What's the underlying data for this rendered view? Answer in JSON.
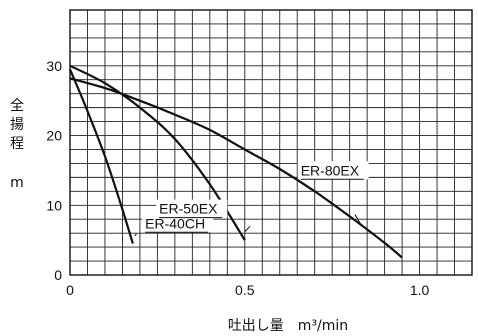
{
  "chart_data": {
    "type": "line",
    "xlabel": "吐出し量　m³/min",
    "ylabel": "全揚程",
    "ylabel_unit": "m",
    "xlim": [
      0,
      1.15
    ],
    "ylim": [
      0,
      38
    ],
    "x_ticks": [
      0,
      0.5,
      1.0
    ],
    "x_tick_labels": [
      "0",
      "0.5",
      "1.0"
    ],
    "y_ticks": [
      0,
      10,
      20,
      30
    ],
    "y_tick_labels": [
      "0",
      "10",
      "20",
      "30"
    ],
    "grid": true,
    "legend": "none",
    "series": [
      {
        "name": "ER-40CH",
        "x": [
          0,
          0.05,
          0.1,
          0.14,
          0.18
        ],
        "y": [
          29.5,
          23.5,
          17,
          11,
          4.5
        ]
      },
      {
        "name": "ER-50EX",
        "x": [
          0,
          0.1,
          0.2,
          0.3,
          0.4,
          0.5
        ],
        "y": [
          30,
          27.5,
          24,
          19.5,
          13,
          5
        ]
      },
      {
        "name": "ER-80EX",
        "x": [
          0,
          0.1,
          0.2,
          0.3,
          0.4,
          0.5,
          0.6,
          0.7,
          0.8,
          0.9,
          0.95
        ],
        "y": [
          28.2,
          26.8,
          25,
          23,
          20.8,
          18,
          15.2,
          12,
          8.4,
          4.6,
          2.5
        ]
      }
    ]
  }
}
